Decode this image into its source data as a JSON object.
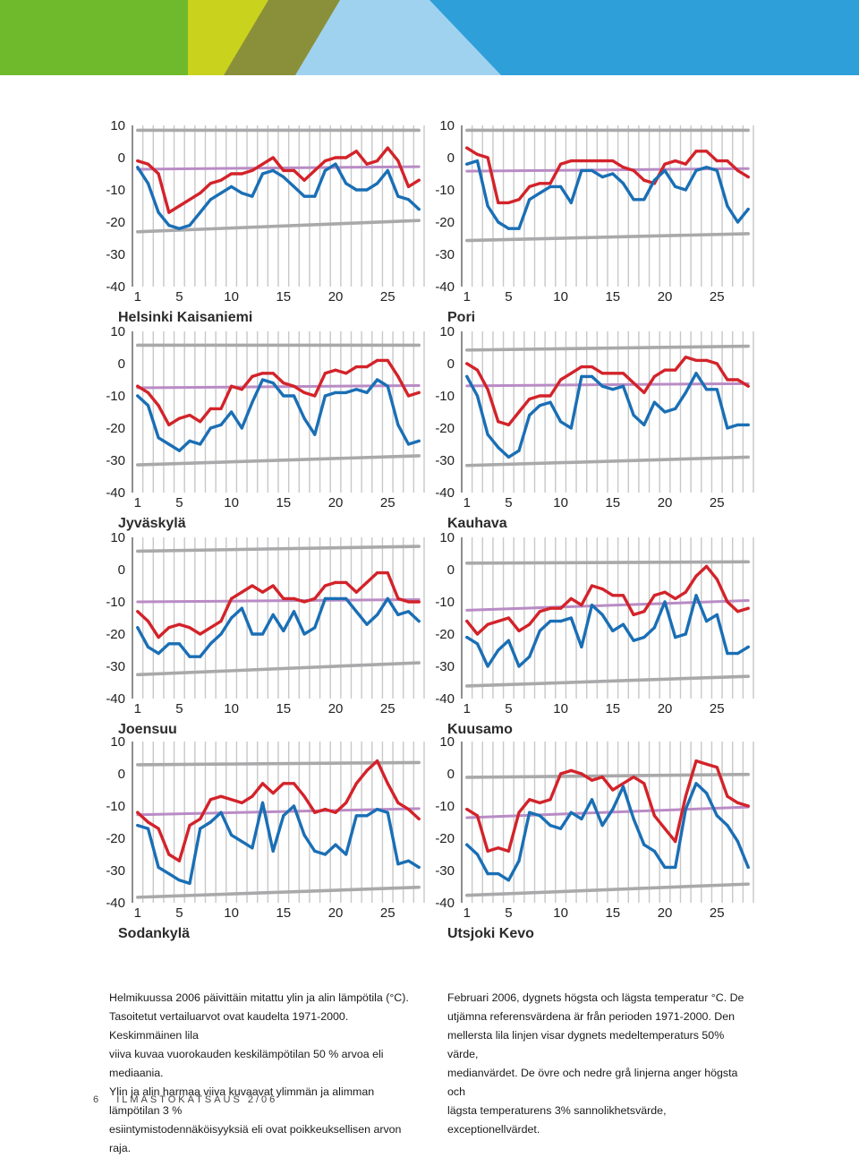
{
  "banner_colors": {
    "green": "#6fba2c",
    "lime": "#c9d21c",
    "olive": "#8a8f3a",
    "blue": "#2e9fd9",
    "sky": "#9fd2ef"
  },
  "colors": {
    "max": "#d3232a",
    "min": "#1a6fb5",
    "median": "#b98bc5",
    "extreme": "#a9a9ab",
    "grid": "#c8c8c8",
    "axis": "#333333"
  },
  "chart_data": [
    {
      "type": "line",
      "title": "Helsinki Kaisaniemi",
      "x": [
        1,
        2,
        3,
        4,
        5,
        6,
        7,
        8,
        9,
        10,
        11,
        12,
        13,
        14,
        15,
        16,
        17,
        18,
        19,
        20,
        21,
        22,
        23,
        24,
        25,
        26,
        27,
        28
      ],
      "xticks": [
        1,
        5,
        10,
        15,
        20,
        25
      ],
      "yticks": [
        10,
        0,
        -10,
        -20,
        -30,
        -40
      ],
      "ylim": [
        -40,
        10
      ],
      "grid": true,
      "series": [
        {
          "role": "max",
          "values": [
            -1,
            -2,
            -5,
            -17,
            -15,
            -13,
            -11,
            -8,
            -7,
            -5,
            -5,
            -4,
            -2,
            0,
            -4,
            -4,
            -7,
            -4,
            -1,
            0,
            0,
            2,
            -2,
            -1,
            3,
            -1,
            -9,
            -7
          ]
        },
        {
          "role": "min",
          "values": [
            -3,
            -8,
            -17,
            -21,
            -22,
            -21,
            -17,
            -13,
            -11,
            -9,
            -11,
            -12,
            -5,
            -4,
            -6,
            -9,
            -12,
            -12,
            -4,
            -2,
            -8,
            -10,
            -10,
            -8,
            -4,
            -12,
            -13,
            -16
          ]
        },
        {
          "role": "median",
          "values_start_end": [
            -3.6,
            -2.8
          ]
        },
        {
          "role": "extreme_high",
          "values_start_end": [
            8.5,
            8.5
          ]
        },
        {
          "role": "extreme_low",
          "values_start_end": [
            -23,
            -19.5
          ]
        }
      ]
    },
    {
      "type": "line",
      "title": "Pori",
      "x": [
        1,
        2,
        3,
        4,
        5,
        6,
        7,
        8,
        9,
        10,
        11,
        12,
        13,
        14,
        15,
        16,
        17,
        18,
        19,
        20,
        21,
        22,
        23,
        24,
        25,
        26,
        27,
        28
      ],
      "xticks": [
        1,
        5,
        10,
        15,
        20,
        25
      ],
      "yticks": [
        10,
        0,
        -10,
        -20,
        -30,
        -40
      ],
      "ylim": [
        -40,
        10
      ],
      "grid": true,
      "series": [
        {
          "role": "max",
          "values": [
            3,
            1,
            0,
            -14,
            -14,
            -13,
            -9,
            -8,
            -8,
            -2,
            -1,
            -1,
            -1,
            -1,
            -1,
            -3,
            -4,
            -7,
            -8,
            -2,
            -1,
            -2,
            2,
            2,
            -1,
            -1,
            -4,
            -6
          ]
        },
        {
          "role": "min",
          "values": [
            -2,
            -1,
            -15,
            -20,
            -22,
            -22,
            -13,
            -11,
            -9,
            -9,
            -14,
            -4,
            -4,
            -6,
            -5,
            -8,
            -13,
            -13,
            -7,
            -4,
            -9,
            -10,
            -4,
            -3,
            -4,
            -15,
            -20,
            -16
          ]
        },
        {
          "role": "median",
          "values_start_end": [
            -4.2,
            -3.4
          ]
        },
        {
          "role": "extreme_high",
          "values_start_end": [
            8.5,
            8.5
          ]
        },
        {
          "role": "extreme_low",
          "values_start_end": [
            -25.7,
            -23.6
          ]
        }
      ]
    },
    {
      "type": "line",
      "title": "Jyväskylä",
      "x": [
        1,
        2,
        3,
        4,
        5,
        6,
        7,
        8,
        9,
        10,
        11,
        12,
        13,
        14,
        15,
        16,
        17,
        18,
        19,
        20,
        21,
        22,
        23,
        24,
        25,
        26,
        27,
        28
      ],
      "xticks": [
        1,
        5,
        10,
        15,
        20,
        25
      ],
      "yticks": [
        10,
        0,
        -10,
        -20,
        -30,
        -40
      ],
      "ylim": [
        -40,
        10
      ],
      "grid": true,
      "series": [
        {
          "role": "max",
          "values": [
            -7,
            -9,
            -13,
            -19,
            -17,
            -16,
            -18,
            -14,
            -14,
            -7,
            -8,
            -4,
            -3,
            -3,
            -6,
            -7,
            -9,
            -10,
            -3,
            -2,
            -3,
            -1,
            -1,
            1,
            1,
            -4,
            -10,
            -9
          ]
        },
        {
          "role": "min",
          "values": [
            -10,
            -13,
            -23,
            -25,
            -27,
            -24,
            -25,
            -20,
            -19,
            -15,
            -20,
            -12,
            -5,
            -6,
            -10,
            -10,
            -17,
            -22,
            -10,
            -9,
            -9,
            -8,
            -9,
            -5,
            -7,
            -19,
            -25,
            -24
          ]
        },
        {
          "role": "median",
          "values_start_end": [
            -7.5,
            -6.8
          ]
        },
        {
          "role": "extreme_high",
          "values_start_end": [
            5.7,
            5.7
          ]
        },
        {
          "role": "extreme_low",
          "values_start_end": [
            -31.4,
            -28.6
          ]
        }
      ]
    },
    {
      "type": "line",
      "title": "Kauhava",
      "x": [
        1,
        2,
        3,
        4,
        5,
        6,
        7,
        8,
        9,
        10,
        11,
        12,
        13,
        14,
        15,
        16,
        17,
        18,
        19,
        20,
        21,
        22,
        23,
        24,
        25,
        26,
        27,
        28
      ],
      "xticks": [
        1,
        5,
        10,
        15,
        20,
        25
      ],
      "yticks": [
        10,
        0,
        -10,
        -20,
        -30,
        -40
      ],
      "ylim": [
        -40,
        10
      ],
      "grid": true,
      "series": [
        {
          "role": "max",
          "values": [
            0,
            -2,
            -8,
            -18,
            -19,
            -15,
            -11,
            -10,
            -10,
            -5,
            -3,
            -1,
            -1,
            -3,
            -3,
            -3,
            -6,
            -9,
            -4,
            -2,
            -2,
            2,
            1,
            1,
            0,
            -5,
            -5,
            -7
          ]
        },
        {
          "role": "min",
          "values": [
            -4,
            -10,
            -22,
            -26,
            -29,
            -27,
            -16,
            -13,
            -12,
            -18,
            -20,
            -4,
            -4,
            -7,
            -8,
            -7,
            -16,
            -19,
            -12,
            -15,
            -14,
            -9,
            -3,
            -8,
            -8,
            -20,
            -19,
            -19
          ]
        },
        {
          "role": "median",
          "values_start_end": [
            -6.9,
            -6.2
          ]
        },
        {
          "role": "extreme_high",
          "values_start_end": [
            4.2,
            5.4
          ]
        },
        {
          "role": "extreme_low",
          "values_start_end": [
            -31.6,
            -29
          ]
        }
      ]
    },
    {
      "type": "line",
      "title": "Joensuu",
      "x": [
        1,
        2,
        3,
        4,
        5,
        6,
        7,
        8,
        9,
        10,
        11,
        12,
        13,
        14,
        15,
        16,
        17,
        18,
        19,
        20,
        21,
        22,
        23,
        24,
        25,
        26,
        27,
        28
      ],
      "xticks": [
        1,
        5,
        10,
        15,
        20,
        25
      ],
      "yticks": [
        10,
        0,
        -10,
        -20,
        -30,
        -40
      ],
      "ylim": [
        -40,
        10
      ],
      "grid": true,
      "series": [
        {
          "role": "max",
          "values": [
            -13,
            -16,
            -21,
            -18,
            -17,
            -18,
            -20,
            -18,
            -16,
            -9,
            -7,
            -5,
            -7,
            -5,
            -9,
            -9,
            -10,
            -9,
            -5,
            -4,
            -4,
            -7,
            -4,
            -1,
            -1,
            -9,
            -10,
            -10
          ]
        },
        {
          "role": "min",
          "values": [
            -18,
            -24,
            -26,
            -23,
            -23,
            -27,
            -27,
            -23,
            -20,
            -15,
            -12,
            -20,
            -20,
            -14,
            -19,
            -13,
            -20,
            -18,
            -9,
            -9,
            -9,
            -13,
            -17,
            -14,
            -9,
            -14,
            -13,
            -16
          ]
        },
        {
          "role": "median",
          "values_start_end": [
            -10,
            -9.3
          ]
        },
        {
          "role": "extreme_high",
          "values_start_end": [
            5.7,
            7.2
          ]
        },
        {
          "role": "extreme_low",
          "values_start_end": [
            -32.6,
            -28.9
          ]
        }
      ]
    },
    {
      "type": "line",
      "title": "Kuusamo",
      "x": [
        1,
        2,
        3,
        4,
        5,
        6,
        7,
        8,
        9,
        10,
        11,
        12,
        13,
        14,
        15,
        16,
        17,
        18,
        19,
        20,
        21,
        22,
        23,
        24,
        25,
        26,
        27,
        28
      ],
      "xticks": [
        1,
        5,
        10,
        15,
        20,
        25
      ],
      "yticks": [
        10,
        0,
        -10,
        -20,
        -30,
        -40
      ],
      "ylim": [
        -40,
        10
      ],
      "grid": true,
      "series": [
        {
          "role": "max",
          "values": [
            -16,
            -20,
            -17,
            -16,
            -15,
            -19,
            -17,
            -13,
            -12,
            -12,
            -9,
            -11,
            -5,
            -6,
            -8,
            -8,
            -14,
            -13,
            -8,
            -7,
            -9,
            -7,
            -2,
            1,
            -3,
            -10,
            -13,
            -12
          ]
        },
        {
          "role": "min",
          "values": [
            -21,
            -23,
            -30,
            -25,
            -22,
            -30,
            -27,
            -19,
            -16,
            -16,
            -15,
            -24,
            -11,
            -14,
            -19,
            -17,
            -22,
            -21,
            -18,
            -10,
            -21,
            -20,
            -8,
            -16,
            -14,
            -26,
            -26,
            -24
          ]
        },
        {
          "role": "median",
          "values_start_end": [
            -12.6,
            -9.6
          ]
        },
        {
          "role": "extreme_high",
          "values_start_end": [
            2,
            2.4
          ]
        },
        {
          "role": "extreme_low",
          "values_start_end": [
            -36.1,
            -33.1
          ]
        }
      ]
    },
    {
      "type": "line",
      "title": "Sodankylä",
      "x": [
        1,
        2,
        3,
        4,
        5,
        6,
        7,
        8,
        9,
        10,
        11,
        12,
        13,
        14,
        15,
        16,
        17,
        18,
        19,
        20,
        21,
        22,
        23,
        24,
        25,
        26,
        27,
        28
      ],
      "xticks": [
        1,
        5,
        10,
        15,
        20,
        25
      ],
      "yticks": [
        10,
        0,
        -10,
        -20,
        -30,
        -40
      ],
      "ylim": [
        -40,
        10
      ],
      "grid": true,
      "series": [
        {
          "role": "max",
          "values": [
            -12,
            -15,
            -17,
            -25,
            -27,
            -16,
            -14,
            -8,
            -7,
            -8,
            -9,
            -7,
            -3,
            -6,
            -3,
            -3,
            -7,
            -12,
            -11,
            -12,
            -9,
            -3,
            1,
            4,
            -3,
            -9,
            -11,
            -14
          ]
        },
        {
          "role": "min",
          "values": [
            -16,
            -17,
            -29,
            -31,
            -33,
            -34,
            -17,
            -15,
            -12,
            -19,
            -21,
            -23,
            -9,
            -24,
            -13,
            -10,
            -19,
            -24,
            -25,
            -22,
            -25,
            -13,
            -13,
            -11,
            -12,
            -28,
            -27,
            -29
          ]
        },
        {
          "role": "median",
          "values_start_end": [
            -12.7,
            -10.8
          ]
        },
        {
          "role": "extreme_high",
          "values_start_end": [
            2.8,
            3.5
          ]
        },
        {
          "role": "extreme_low",
          "values_start_end": [
            -38.3,
            -35.2
          ]
        }
      ]
    },
    {
      "type": "line",
      "title": "Utsjoki Kevo",
      "x": [
        1,
        2,
        3,
        4,
        5,
        6,
        7,
        8,
        9,
        10,
        11,
        12,
        13,
        14,
        15,
        16,
        17,
        18,
        19,
        20,
        21,
        22,
        23,
        24,
        25,
        26,
        27,
        28
      ],
      "xticks": [
        1,
        5,
        10,
        15,
        20,
        25
      ],
      "yticks": [
        10,
        0,
        -10,
        -20,
        -30,
        -40
      ],
      "ylim": [
        -40,
        10
      ],
      "grid": true,
      "series": [
        {
          "role": "max",
          "values": [
            -11,
            -13,
            -24,
            -23,
            -24,
            -12,
            -8,
            -9,
            -8,
            0,
            1,
            0,
            -2,
            -1,
            -5,
            -3,
            -1,
            -3,
            -13,
            -17,
            -21,
            -7,
            4,
            3,
            2,
            -7,
            -9,
            -10
          ]
        },
        {
          "role": "min",
          "values": [
            -22,
            -25,
            -31,
            -31,
            -33,
            -27,
            -12,
            -13,
            -16,
            -17,
            -12,
            -14,
            -8,
            -16,
            -11,
            -4,
            -14,
            -22,
            -24,
            -29,
            -29,
            -11,
            -3,
            -6,
            -13,
            -16,
            -21,
            -29
          ]
        },
        {
          "role": "median",
          "values_start_end": [
            -13.6,
            -10.3
          ]
        },
        {
          "role": "extreme_high",
          "values_start_end": [
            -1.1,
            -0.2
          ]
        },
        {
          "role": "extreme_low",
          "values_start_end": [
            -37.7,
            -34.2
          ]
        }
      ]
    }
  ],
  "caption_fi": [
    "Helmikuussa 2006 päivittäin mitattu ylin ja alin lämpötila (°C).",
    "Tasoitetut vertailuarvot ovat kaudelta 1971-2000. Keskimmäinen lila",
    "viiva kuvaa vuorokauden keskilämpötilan 50 % arvoa eli mediaania.",
    "Ylin ja alin harmaa viiva kuvaavat ylimmän ja alimman lämpötilan 3 %",
    "esiintymistodennäköisyyksiä eli ovat poikkeuksellisen arvon raja."
  ],
  "caption_sv": [
    "Februari 2006, dygnets högsta och lägsta temperatur °C. De",
    "utjämna referensvärdena är från perioden 1971-2000. Den",
    "mellersta lila linjen visar dygnets medeltemperaturs 50% värde,",
    "medianvärdet. De övre och nedre grå linjerna anger högsta och",
    "lägsta temperaturens 3% sannolikhetsvärde, exceptionellvärdet."
  ],
  "footer": {
    "page": "6",
    "publication": "ILMASTOKATSAUS 2/06"
  }
}
